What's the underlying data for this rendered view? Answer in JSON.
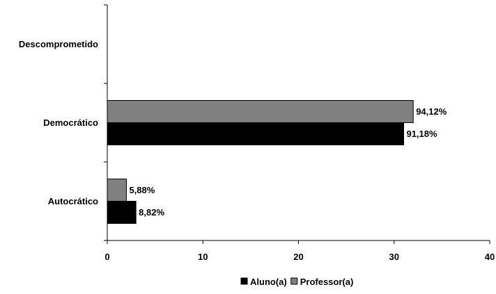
{
  "chart_data": {
    "type": "bar",
    "orientation": "horizontal",
    "categories": [
      "Descomprometido",
      "Democrático",
      "Autocrático"
    ],
    "series": [
      {
        "name": "Aluno(a)",
        "color": "#000000",
        "values": [
          0,
          31,
          3
        ],
        "data_labels": [
          "",
          "91,18%",
          "8,82%"
        ]
      },
      {
        "name": "Professor(a)",
        "color": "#808080",
        "values": [
          0,
          32,
          2
        ],
        "data_labels": [
          "",
          "94,12%",
          "5,88%"
        ]
      }
    ],
    "xlim": [
      0,
      40
    ],
    "x_ticks": [
      "0",
      "10",
      "20",
      "30",
      "40"
    ],
    "title": "",
    "xlabel": "",
    "ylabel": "",
    "grid": false,
    "legend_position": "bottom"
  }
}
